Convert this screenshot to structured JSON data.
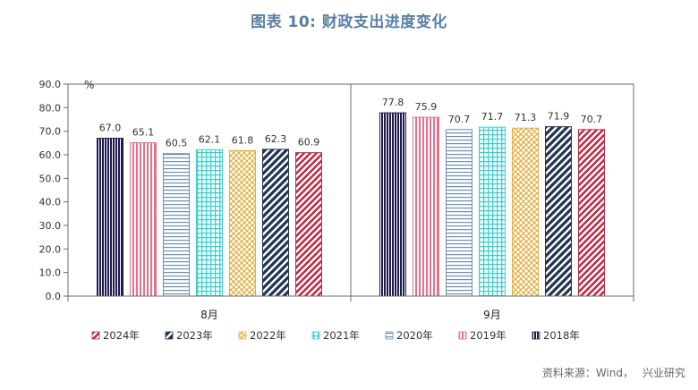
{
  "title": "图表 10: 财政支出进度变化",
  "source": {
    "prefix": "资料来源：Wind，",
    "name": "兴业研究"
  },
  "chart_data": {
    "type": "bar",
    "title": "图表 10: 财政支出进度变化",
    "unit_label": "%",
    "categories": [
      "8月",
      "9月"
    ],
    "ylim": [
      0,
      90
    ],
    "yticks": [
      "0.0",
      "10.0",
      "20.0",
      "30.0",
      "40.0",
      "50.0",
      "60.0",
      "70.0",
      "80.0",
      "90.0"
    ],
    "grid": false,
    "legend_position": "bottom",
    "series": [
      {
        "name": "2018年",
        "values": [
          67.0,
          77.8
        ],
        "color": "#1f1a4d",
        "pattern": "vertical-dense"
      },
      {
        "name": "2019年",
        "values": [
          65.1,
          75.9
        ],
        "color": "#e8708a",
        "pattern": "vertical"
      },
      {
        "name": "2020年",
        "values": [
          60.5,
          70.7
        ],
        "color": "#6f8fb3",
        "pattern": "horizontal"
      },
      {
        "name": "2021年",
        "values": [
          62.1,
          71.7
        ],
        "color": "#3ccfcf",
        "pattern": "grid"
      },
      {
        "name": "2022年",
        "values": [
          61.8,
          71.3
        ],
        "color": "#e0b040",
        "pattern": "crosshatch"
      },
      {
        "name": "2023年",
        "values": [
          62.3,
          71.9
        ],
        "color": "#1f3550",
        "pattern": "diagonal-wide"
      },
      {
        "name": "2024年",
        "values": [
          60.9,
          70.7
        ],
        "color": "#b8324a",
        "pattern": "diagonal"
      }
    ],
    "legend_order": [
      "2024年",
      "2023年",
      "2022年",
      "2021年",
      "2020年",
      "2019年",
      "2018年"
    ]
  }
}
